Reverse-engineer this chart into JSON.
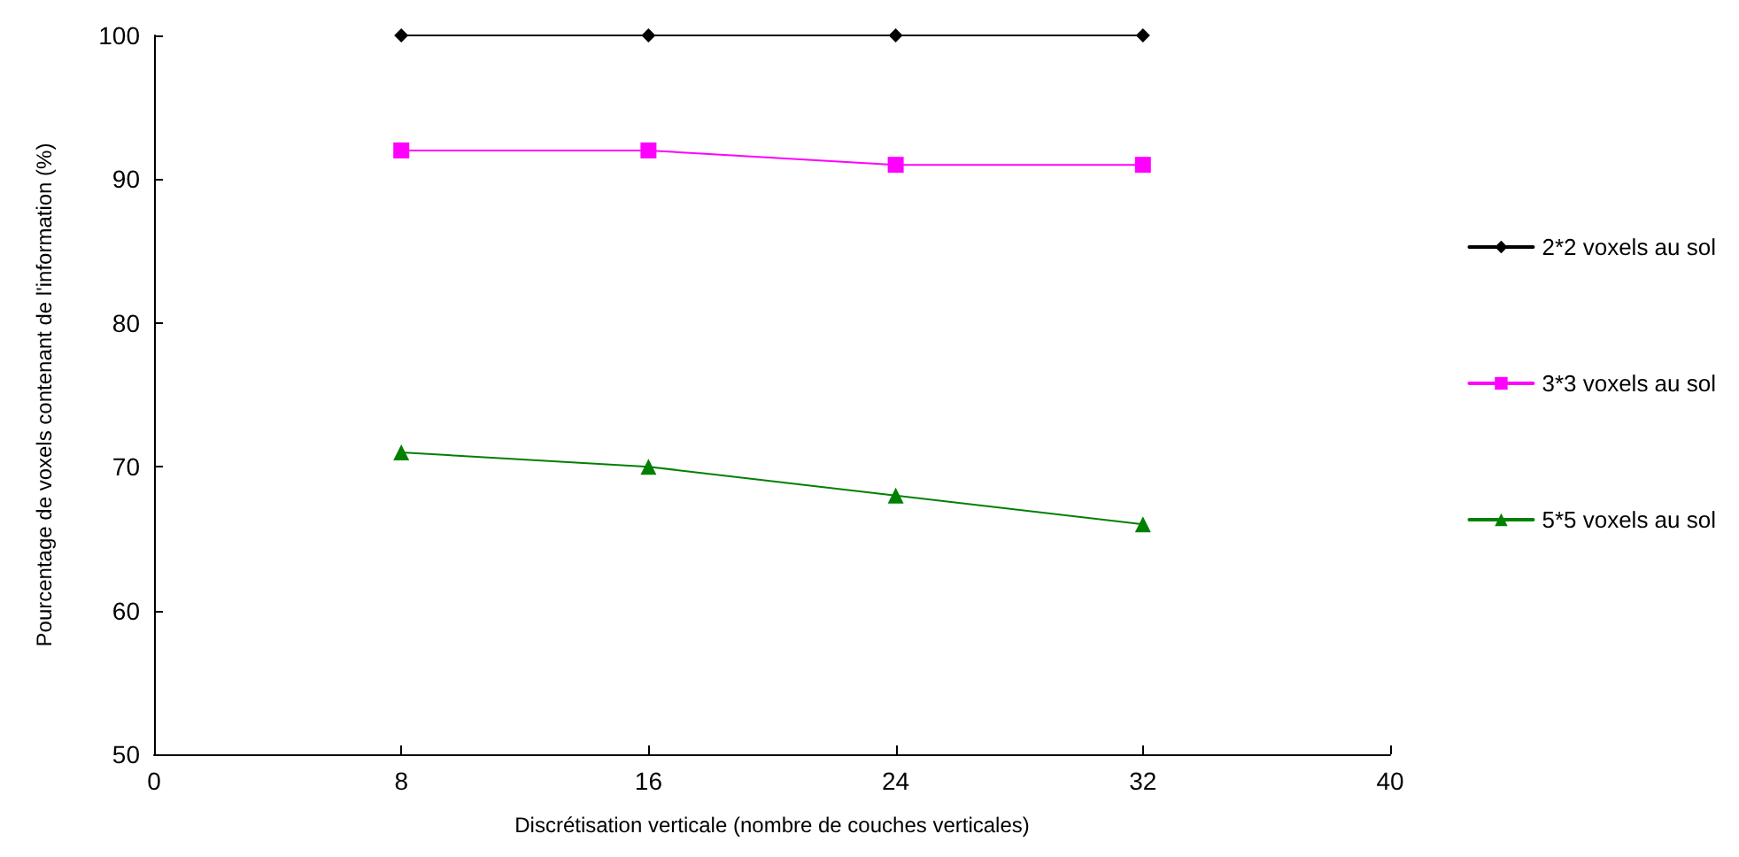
{
  "chart_data": {
    "type": "line",
    "xlabel": "Discrétisation verticale (nombre de couches verticales)",
    "ylabel": "Pourcentage de voxels contenant de l'information (%)",
    "x": [
      8,
      16,
      24,
      32
    ],
    "series": [
      {
        "name": "2*2 voxels au sol",
        "color": "#000000",
        "marker": "diamond",
        "values": [
          100,
          100,
          100,
          100
        ]
      },
      {
        "name": "3*3 voxels au sol",
        "color": "#ff00ff",
        "marker": "square",
        "values": [
          92,
          92,
          91,
          91
        ]
      },
      {
        "name": "5*5 voxels au sol",
        "color": "#008000",
        "marker": "triangle",
        "values": [
          71,
          70,
          68,
          66
        ]
      }
    ],
    "xlim": [
      0,
      40
    ],
    "xticks": [
      0,
      8,
      16,
      24,
      32,
      40
    ],
    "ylim": [
      50,
      100
    ],
    "yticks": [
      50,
      60,
      70,
      80,
      90,
      100
    ],
    "grid": false,
    "legend": "right"
  }
}
